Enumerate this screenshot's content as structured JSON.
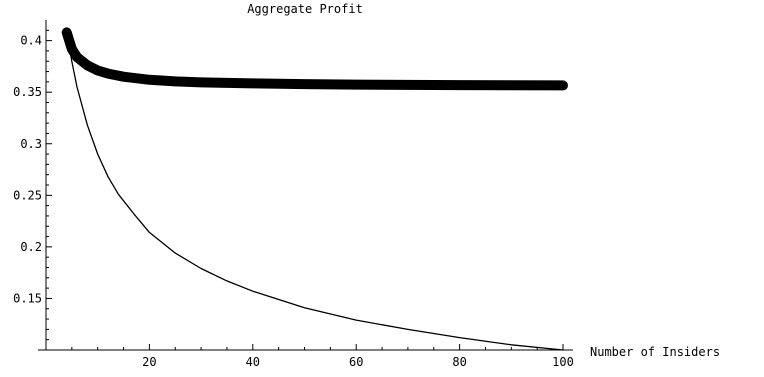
{
  "chart_data": {
    "type": "line",
    "title": "Aggregate Profit",
    "xlabel": "Number of Insiders",
    "ylabel": "",
    "xlim": [
      0,
      100
    ],
    "ylim": [
      0.1,
      0.42
    ],
    "x_axis_at_y": 0.1,
    "x_ticks": [
      20,
      40,
      60,
      80,
      100
    ],
    "x_tick_labels": [
      "20",
      "40",
      "60",
      "80",
      "100"
    ],
    "y_ticks": [
      0.15,
      0.2,
      0.25,
      0.3,
      0.35,
      0.4
    ],
    "y_tick_labels": [
      "0.15",
      "0.2",
      "0.25",
      "0.3",
      "0.35",
      "0.4"
    ],
    "legend": "none",
    "grid": false,
    "series": [
      {
        "style": "thick",
        "color": "#000000",
        "x": [
          4,
          5,
          6,
          8,
          10,
          12,
          15,
          20,
          25,
          30,
          40,
          50,
          60,
          70,
          80,
          90,
          100
        ],
        "y": [
          0.408,
          0.392,
          0.384,
          0.376,
          0.371,
          0.368,
          0.365,
          0.362,
          0.3605,
          0.3595,
          0.3585,
          0.3578,
          0.3574,
          0.3571,
          0.3569,
          0.3567,
          0.3566
        ]
      },
      {
        "style": "thin",
        "color": "#000000",
        "x": [
          4,
          5,
          6,
          8,
          10,
          12,
          14,
          17,
          20,
          25,
          30,
          35,
          40,
          50,
          60,
          70,
          80,
          90,
          100
        ],
        "y": [
          0.408,
          0.38,
          0.355,
          0.318,
          0.29,
          0.268,
          0.251,
          0.232,
          0.214,
          0.194,
          0.179,
          0.167,
          0.157,
          0.141,
          0.129,
          0.12,
          0.112,
          0.105,
          0.1
        ]
      }
    ]
  }
}
